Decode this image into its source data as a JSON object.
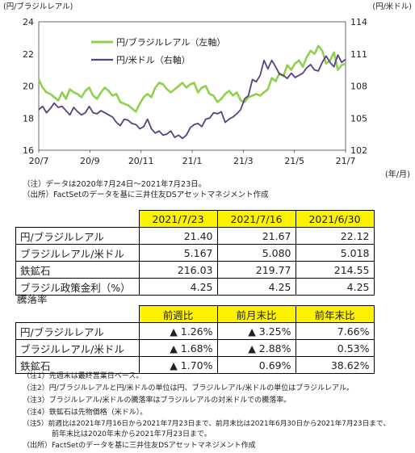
{
  "chart_data": [
    {
      "type": "line",
      "xlabel": "(年/月)",
      "y_left_label": "(円/ブラジルレアル)",
      "y_right_label": "(円/米ドル)",
      "x_ticks": [
        "20/7",
        "20/9",
        "20/11",
        "21/1",
        "21/3",
        "21/5",
        "21/7"
      ],
      "y_left_ticks": [
        "24",
        "22",
        "20",
        "18",
        "16"
      ],
      "y_right_ticks": [
        "114",
        "111",
        "108",
        "105",
        "102"
      ],
      "ylim_left": [
        16,
        24
      ],
      "ylim_right": [
        102,
        114
      ],
      "legend_placement": "top-left",
      "series": [
        {
          "name": "円/ブラジルレアル（左軸）",
          "color": "#8fd14f",
          "axis": "left",
          "values": [
            20.4,
            19.9,
            19.6,
            19.5,
            19.3,
            19.1,
            19.6,
            19.2,
            19.8,
            19.6,
            19.5,
            19.3,
            19.7,
            19.9,
            19.4,
            19.2,
            19.6,
            19.9,
            19.7,
            19.4,
            19.5,
            19.0,
            18.9,
            18.8,
            18.6,
            18.4,
            18.9,
            19.3,
            19.5,
            19.3,
            19.9,
            20.2,
            20.1,
            19.8,
            19.6,
            19.8,
            20.0,
            20.2,
            19.9,
            20.1,
            20.2,
            19.6,
            19.9,
            20.0,
            19.5,
            19.4,
            19.0,
            19.2,
            19.5,
            19.7,
            19.4,
            19.6,
            19.1,
            19.0,
            19.3,
            19.4,
            19.5,
            19.4,
            19.6,
            19.8,
            20.5,
            20.3,
            20.8,
            20.6,
            21.3,
            21.0,
            21.4,
            21.6,
            21.2,
            21.8,
            22.2,
            22.0,
            22.5,
            22.2,
            21.4,
            21.6,
            22.1,
            21.0,
            21.3,
            21.4
          ]
        },
        {
          "name": "円/米ドル（右軸）",
          "color": "#5a4080",
          "axis": "right",
          "values": [
            105.8,
            106.1,
            105.5,
            105.9,
            106.4,
            106.0,
            106.1,
            105.7,
            105.3,
            106.0,
            105.6,
            105.3,
            105.5,
            106.1,
            105.5,
            105.4,
            105.7,
            105.5,
            105.3,
            105.1,
            104.6,
            104.3,
            104.9,
            104.8,
            104.5,
            104.4,
            104.0,
            104.2,
            104.9,
            104.0,
            103.6,
            103.8,
            103.4,
            103.5,
            103.8,
            103.2,
            103.4,
            103.1,
            103.4,
            104.1,
            104.4,
            104.5,
            104.2,
            104.9,
            105.0,
            105.5,
            105.4,
            105.6,
            104.6,
            104.9,
            105.1,
            105.4,
            105.8,
            106.8,
            107.1,
            108.6,
            108.4,
            109.0,
            110.4,
            109.6,
            110.4,
            109.8,
            109.1,
            109.0,
            108.7,
            109.2,
            108.8,
            109.0,
            109.2,
            109.7,
            110.0,
            109.5,
            109.4,
            110.2,
            110.8,
            110.2,
            109.8,
            110.9,
            110.2,
            110.5
          ]
        }
      ]
    },
    {
      "type": "table",
      "columns": [
        "",
        "2021/7/23",
        "2021/7/16",
        "2021/6/30"
      ],
      "rows": [
        [
          "円/ブラジルレアル",
          "21.40",
          "21.67",
          "22.12"
        ],
        [
          "ブラジルレアル/米ドル",
          "5.167",
          "5.080",
          "5.018"
        ],
        [
          "鉄鉱石",
          "216.03",
          "219.77",
          "214.55"
        ],
        [
          "ブラジル政策金利（%）",
          "4.25",
          "4.25",
          "4.25"
        ]
      ]
    },
    {
      "type": "table",
      "title": "騰落率",
      "columns": [
        "",
        "前週比",
        "前月末比",
        "前年末比"
      ],
      "rows": [
        [
          "円/ブラジルレアル",
          "▲ 1.26%",
          "▲ 3.25%",
          "7.66%"
        ],
        [
          "ブラジルレアル/米ドル",
          "▲ 1.68%",
          "▲ 2.88%",
          "0.53%"
        ],
        [
          "鉄鉱石",
          "▲ 1.70%",
          "0.69%",
          "38.62%"
        ]
      ]
    }
  ],
  "chart_note1": "（注）データは2020年7月24日～2021年7月23日。",
  "chart_note2": "（出所）FactSetのデータを基に三井住友DSアセットマネジメント作成",
  "footnotes": [
    "（注1）先週末は最終営業日ベース。",
    "（注2）円/ブラジルレアルと円/米ドルの単位は円、ブラジルレアル/米ドルの単位はブラジルレアル。",
    "（注3）ブラジルレアル/米ドルの騰落率はブラジルレアルの対米ドルでの騰落率。",
    "（注4）鉄鉱石は先物価格（米ドル）。",
    "（注5）前週比は2021年7月16日から2021年7月23日まで、前月末比は2021年6月30日から2021年7月23日まで、",
    "　　　　前年末比は2020年末から2021年7月23日まで。",
    "（出所）FactSetのデータを基に三井住友DSアセットマネジメント作成"
  ]
}
